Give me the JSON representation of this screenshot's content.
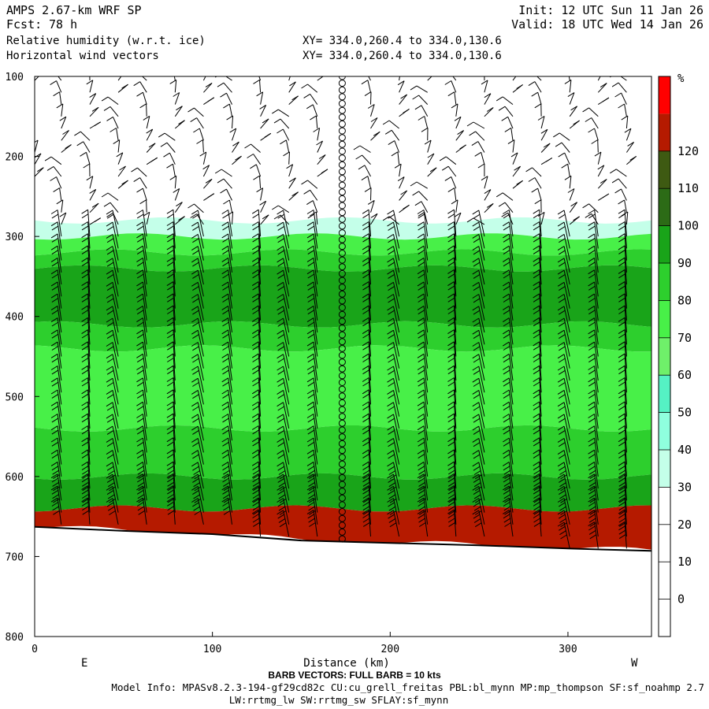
{
  "header": {
    "model": "AMPS 2.67-km WRF SP",
    "fcst_label": "Fcst:",
    "fcst_value": "78 h",
    "init": "Init: 12 UTC Sun 11 Jan 26",
    "valid": "Valid: 18 UTC Wed 14 Jan 26",
    "field1": "Relative humidity (w.r.t. ice)",
    "field2": "Horizontal wind vectors",
    "xy1": "XY= 334.0,260.4 to 334.0,130.6",
    "xy2": "XY= 334.0,260.4 to 334.0,130.6"
  },
  "footer": {
    "barb_note": "BARB VECTORS:  FULL BARB = 10 kts",
    "model_info": "Model Info: MPASv8.2.3-194-gf29cd82c CU:cu_grell_freitas PBL:bl_mynn MP:mp_thompson SF:sf_noahmp 2.7",
    "model_info2": "LW:rrtmg_lw SW:rrtmg_sw SFLAY:sf_mynn"
  },
  "chart_data": {
    "type": "heatmap",
    "title": "Relative humidity (w.r.t. ice)",
    "xlabel": "Distance (km)",
    "ylabel": "",
    "xlim": [
      0,
      347
    ],
    "ylim": [
      800,
      100
    ],
    "x_ticks": [
      0,
      100,
      200,
      300
    ],
    "y_ticks": [
      100,
      200,
      300,
      400,
      500,
      600,
      700,
      800
    ],
    "x_end_labels": {
      "left": "E",
      "right": "W"
    },
    "colorbar": {
      "unit": "%",
      "ticks": [
        0,
        10,
        20,
        30,
        40,
        50,
        60,
        70,
        80,
        90,
        100,
        110,
        120
      ],
      "bands": [
        {
          "from": -10,
          "to": 30,
          "color": "#ffffff"
        },
        {
          "from": 30,
          "to": 40,
          "color": "#c4ffe9"
        },
        {
          "from": 40,
          "to": 50,
          "color": "#8fffde"
        },
        {
          "from": 50,
          "to": 60,
          "color": "#55f2c4"
        },
        {
          "from": 60,
          "to": 70,
          "color": "#6ff06a"
        },
        {
          "from": 70,
          "to": 80,
          "color": "#48f048"
        },
        {
          "from": 80,
          "to": 90,
          "color": "#2dcf2d"
        },
        {
          "from": 90,
          "to": 100,
          "color": "#19a419"
        },
        {
          "from": 100,
          "to": 110,
          "color": "#2c6b16"
        },
        {
          "from": 110,
          "to": 120,
          "color": "#3e5a12"
        },
        {
          "from": 120,
          "to": 130,
          "color": "#b51a00"
        },
        {
          "from": 130,
          "to": 140,
          "color": "#ff0000"
        }
      ]
    },
    "terrain_pressure": [
      [
        0,
        663
      ],
      [
        50,
        668
      ],
      [
        100,
        672
      ],
      [
        150,
        680
      ],
      [
        200,
        683
      ],
      [
        250,
        686
      ],
      [
        300,
        690
      ],
      [
        347,
        693
      ]
    ],
    "rh_layers": [
      {
        "top": 280,
        "bottom": 300,
        "rh": 35
      },
      {
        "top": 300,
        "bottom": 320,
        "rh": 75
      },
      {
        "top": 320,
        "bottom": 340,
        "rh": 85
      },
      {
        "top": 340,
        "bottom": 410,
        "rh": 95
      },
      {
        "top": 410,
        "bottom": 440,
        "rh": 85
      },
      {
        "top": 440,
        "bottom": 540,
        "rh": 72
      },
      {
        "top": 540,
        "bottom": 600,
        "rh": 80
      },
      {
        "top": 600,
        "bottom": 640,
        "rh": 95
      },
      {
        "top": 640,
        "bottom": 693,
        "rh": 125
      }
    ],
    "circle_column_x": 173,
    "barb_columns_x": [
      0,
      15,
      31,
      47,
      63,
      79,
      95,
      111,
      127,
      143,
      159,
      189,
      205,
      221,
      237,
      253,
      269,
      285,
      301,
      317,
      333
    ]
  }
}
